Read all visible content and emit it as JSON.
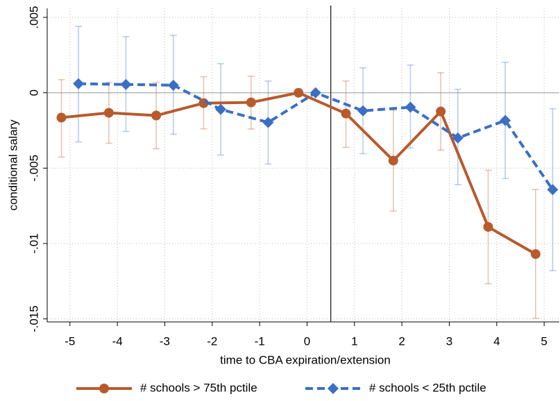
{
  "chart_data": {
    "type": "line",
    "x_label": "time to CBA expiration/extension",
    "y_label": "conditional salary",
    "xlim": [
      -5.48,
      5.32
    ],
    "ylim": [
      -0.0152,
      0.0056
    ],
    "xticks": [
      -5,
      -4,
      -3,
      -2,
      -1,
      0,
      1,
      2,
      3,
      4,
      5
    ],
    "yticks": [
      {
        "value": 0.005,
        "label": ".005"
      },
      0,
      {
        "value": -0.005,
        "label": "-.005"
      },
      {
        "value": -0.01,
        "label": "-.01"
      },
      {
        "value": -0.015,
        "label": "-.015"
      }
    ],
    "grid": true,
    "vline": 0.5,
    "hline": 0,
    "legend": "bottom",
    "series": [
      {
        "name": "# schools > 75th pctile",
        "color": "#b85a2c",
        "marker": "circle",
        "dashed": false,
        "x": [
          -5.18,
          -4.18,
          -3.18,
          -2.18,
          -1.18,
          -0.18,
          0.82,
          1.82,
          2.82,
          3.82,
          4.82
        ],
        "values": [
          -0.00165,
          -0.00133,
          -0.00151,
          -0.00069,
          -0.00064,
          0,
          -0.00138,
          -0.0045,
          -0.00124,
          -0.0089,
          -0.0107
        ],
        "lower": [
          -0.00427,
          -0.00335,
          -0.00372,
          -0.00239,
          -0.0024,
          null,
          -0.00362,
          -0.00785,
          -0.0038,
          -0.01267,
          -0.01496
        ],
        "upper": [
          0.00087,
          0.00069,
          0.00069,
          0.00106,
          0.0011,
          null,
          0.00078,
          -0.00115,
          0.00133,
          -0.00514,
          -0.00642
        ]
      },
      {
        "name": "# schools < 25th pctile",
        "color": "#3a6fc4",
        "marker": "diamond",
        "dashed": true,
        "x": [
          -4.82,
          -3.82,
          -2.82,
          -1.82,
          -0.82,
          0.18,
          1.18,
          2.18,
          3.18,
          4.18,
          5.18
        ],
        "values": [
          0.0006,
          0.00055,
          0.0005,
          -0.0011,
          -0.00197,
          0,
          -0.0012,
          -0.00096,
          -0.003,
          -0.00184,
          -0.00643
        ],
        "lower": [
          -0.00326,
          -0.00257,
          -0.00275,
          -0.00413,
          -0.00473,
          null,
          -0.00404,
          -0.00367,
          -0.0061,
          -0.00569,
          -0.0118
        ],
        "upper": [
          0.0044,
          0.00372,
          0.00381,
          0.00193,
          0.00078,
          null,
          0.00165,
          0.00184,
          0.00023,
          0.00202,
          -0.00106
        ]
      }
    ]
  }
}
